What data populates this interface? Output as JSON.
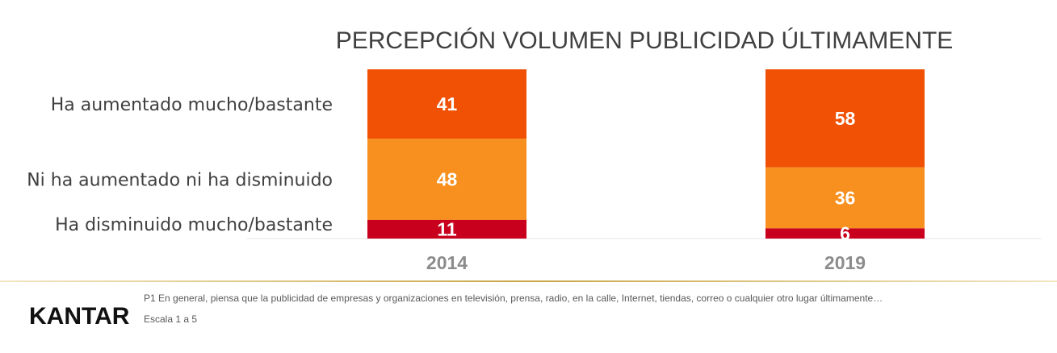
{
  "chart_data": {
    "type": "bar",
    "stacked": true,
    "normalized_percent": true,
    "title": "PERCEPCIÓN VOLUMEN PUBLICIDAD ÚLTIMAMENTE",
    "categories": [
      "2014",
      "2019"
    ],
    "series": [
      {
        "name": "Ha aumentado mucho/bastante",
        "values": [
          41,
          58
        ],
        "color": "#f05104"
      },
      {
        "name": "Ni ha aumentado ni ha disminuido",
        "values": [
          48,
          36
        ],
        "color": "#f7901e"
      },
      {
        "name": "Ha disminuido mucho/bastante",
        "values": [
          11,
          6
        ],
        "color": "#c8001e"
      }
    ],
    "ylim": [
      0,
      100
    ],
    "grid": false,
    "legend": "left"
  },
  "footer": {
    "note_line1": "P1 En general, piensa que la publicidad de empresas y organizaciones en televisión, prensa, radio, en la calle, Internet, tiendas, correo o cualquier otro lugar últimamente…",
    "note_line2": "Escala 1 a 5",
    "logo_text": "KANTAR",
    "rule_color": "#c9a646"
  }
}
